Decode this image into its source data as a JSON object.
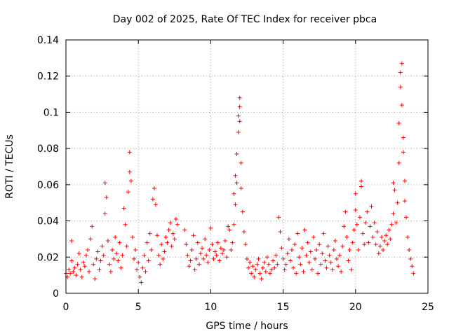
{
  "chart_data": {
    "type": "scatter",
    "title": "Day 002 of 2025, Rate Of TEC Index for receiver pbca",
    "xlabel": "GPS time / hours",
    "ylabel": "ROTI / TECUs",
    "xlim": [
      0,
      25
    ],
    "ylim": [
      0,
      0.14
    ],
    "xticks": [
      0,
      5,
      10,
      15,
      20,
      25
    ],
    "yticks": [
      0,
      0.02,
      0.04,
      0.06,
      0.08,
      0.1,
      0.12,
      0.14
    ],
    "grid": true,
    "marker": "+",
    "color": "#ff0000",
    "series": [
      {
        "name": "ROTI",
        "points": [
          [
            0.0,
            0.011
          ],
          [
            0.1,
            0.009
          ],
          [
            0.2,
            0.013
          ],
          [
            0.3,
            0.011
          ],
          [
            0.4,
            0.018
          ],
          [
            0.4,
            0.029
          ],
          [
            0.5,
            0.012
          ],
          [
            0.6,
            0.014
          ],
          [
            0.7,
            0.01
          ],
          [
            0.8,
            0.016
          ],
          [
            0.9,
            0.022
          ],
          [
            1.0,
            0.013
          ],
          [
            1.1,
            0.009
          ],
          [
            1.2,
            0.017
          ],
          [
            1.3,
            0.015
          ],
          [
            1.4,
            0.021
          ],
          [
            1.5,
            0.024
          ],
          [
            1.6,
            0.012
          ],
          [
            1.7,
            0.03
          ],
          [
            1.8,
            0.037
          ],
          [
            1.9,
            0.016
          ],
          [
            2.0,
            0.008
          ],
          [
            2.1,
            0.019
          ],
          [
            2.2,
            0.023
          ],
          [
            2.3,
            0.013
          ],
          [
            2.4,
            0.018
          ],
          [
            2.5,
            0.026
          ],
          [
            2.6,
            0.021
          ],
          [
            2.7,
            0.044
          ],
          [
            2.7,
            0.061
          ],
          [
            2.8,
            0.053
          ],
          [
            2.9,
            0.029
          ],
          [
            3.0,
            0.016
          ],
          [
            3.1,
            0.012
          ],
          [
            3.2,
            0.024
          ],
          [
            3.3,
            0.019
          ],
          [
            3.4,
            0.031
          ],
          [
            3.5,
            0.022
          ],
          [
            3.6,
            0.018
          ],
          [
            3.7,
            0.028
          ],
          [
            3.8,
            0.014
          ],
          [
            3.9,
            0.021
          ],
          [
            4.0,
            0.047
          ],
          [
            4.1,
            0.038
          ],
          [
            4.2,
            0.026
          ],
          [
            4.3,
            0.056
          ],
          [
            4.4,
            0.067
          ],
          [
            4.4,
            0.078
          ],
          [
            4.5,
            0.062
          ],
          [
            4.6,
            0.031
          ],
          [
            4.7,
            0.019
          ],
          [
            4.8,
            0.024
          ],
          [
            4.9,
            0.013
          ],
          [
            5.0,
            0.017
          ],
          [
            5.1,
            0.009
          ],
          [
            5.2,
            0.006
          ],
          [
            5.3,
            0.014
          ],
          [
            5.4,
            0.021
          ],
          [
            5.5,
            0.012
          ],
          [
            5.6,
            0.028
          ],
          [
            5.7,
            0.018
          ],
          [
            5.8,
            0.033
          ],
          [
            5.9,
            0.024
          ],
          [
            6.0,
            0.052
          ],
          [
            6.1,
            0.058
          ],
          [
            6.2,
            0.049
          ],
          [
            6.3,
            0.032
          ],
          [
            6.4,
            0.021
          ],
          [
            6.5,
            0.016
          ],
          [
            6.6,
            0.027
          ],
          [
            6.7,
            0.019
          ],
          [
            6.8,
            0.023
          ],
          [
            6.9,
            0.031
          ],
          [
            7.0,
            0.028
          ],
          [
            7.1,
            0.035
          ],
          [
            7.2,
            0.039
          ],
          [
            7.3,
            0.026
          ],
          [
            7.4,
            0.033
          ],
          [
            7.5,
            0.03
          ],
          [
            7.6,
            0.041
          ],
          [
            7.7,
            0.038
          ],
          [
            8.2,
            0.035
          ],
          [
            8.3,
            0.027
          ],
          [
            8.4,
            0.021
          ],
          [
            8.5,
            0.015
          ],
          [
            8.6,
            0.018
          ],
          [
            8.7,
            0.024
          ],
          [
            8.8,
            0.032
          ],
          [
            8.9,
            0.013
          ],
          [
            9.0,
            0.019
          ],
          [
            9.1,
            0.028
          ],
          [
            9.2,
            0.016
          ],
          [
            9.3,
            0.022
          ],
          [
            9.4,
            0.025
          ],
          [
            9.5,
            0.019
          ],
          [
            9.6,
            0.03
          ],
          [
            9.7,
            0.021
          ],
          [
            9.8,
            0.017
          ],
          [
            9.9,
            0.024
          ],
          [
            10.0,
            0.036
          ],
          [
            10.1,
            0.027
          ],
          [
            10.2,
            0.019
          ],
          [
            10.3,
            0.023
          ],
          [
            10.4,
            0.021
          ],
          [
            10.5,
            0.028
          ],
          [
            10.6,
            0.018
          ],
          [
            10.7,
            0.025
          ],
          [
            10.8,
            0.022
          ],
          [
            10.9,
            0.024
          ],
          [
            11.0,
            0.029
          ],
          [
            11.1,
            0.02
          ],
          [
            11.2,
            0.037
          ],
          [
            11.3,
            0.035
          ],
          [
            11.4,
            0.024
          ],
          [
            11.5,
            0.028
          ],
          [
            11.6,
            0.038
          ],
          [
            11.6,
            0.055
          ],
          [
            11.7,
            0.065
          ],
          [
            11.7,
            0.049
          ],
          [
            11.8,
            0.061
          ],
          [
            11.8,
            0.077
          ],
          [
            11.9,
            0.089
          ],
          [
            11.9,
            0.098
          ],
          [
            12.0,
            0.095
          ],
          [
            12.0,
            0.108
          ],
          [
            12.0,
            0.103
          ],
          [
            12.1,
            0.072
          ],
          [
            12.1,
            0.058
          ],
          [
            12.2,
            0.045
          ],
          [
            12.3,
            0.034
          ],
          [
            12.4,
            0.027
          ],
          [
            12.5,
            0.019
          ],
          [
            12.6,
            0.014
          ],
          [
            12.7,
            0.017
          ],
          [
            12.8,
            0.011
          ],
          [
            12.9,
            0.015
          ],
          [
            13.0,
            0.009
          ],
          [
            13.1,
            0.013
          ],
          [
            13.2,
            0.016
          ],
          [
            13.3,
            0.019
          ],
          [
            13.4,
            0.011
          ],
          [
            13.5,
            0.008
          ],
          [
            13.6,
            0.014
          ],
          [
            13.7,
            0.017
          ],
          [
            13.8,
            0.012
          ],
          [
            13.9,
            0.02
          ],
          [
            14.0,
            0.016
          ],
          [
            14.1,
            0.011
          ],
          [
            14.2,
            0.013
          ],
          [
            14.3,
            0.018
          ],
          [
            14.4,
            0.014
          ],
          [
            14.5,
            0.021
          ],
          [
            14.6,
            0.016
          ],
          [
            14.7,
            0.042
          ],
          [
            14.8,
            0.034
          ],
          [
            14.9,
            0.025
          ],
          [
            15.0,
            0.019
          ],
          [
            15.1,
            0.013
          ],
          [
            15.2,
            0.016
          ],
          [
            15.3,
            0.022
          ],
          [
            15.4,
            0.03
          ],
          [
            15.5,
            0.018
          ],
          [
            15.6,
            0.024
          ],
          [
            15.7,
            0.014
          ],
          [
            15.8,
            0.027
          ],
          [
            15.9,
            0.011
          ],
          [
            16.0,
            0.033
          ],
          [
            16.1,
            0.02
          ],
          [
            16.2,
            0.016
          ],
          [
            16.3,
            0.025
          ],
          [
            16.4,
            0.012
          ],
          [
            16.5,
            0.035
          ],
          [
            16.6,
            0.021
          ],
          [
            16.7,
            0.028
          ],
          [
            16.8,
            0.017
          ],
          [
            16.9,
            0.023
          ],
          [
            17.0,
            0.013
          ],
          [
            17.1,
            0.031
          ],
          [
            17.2,
            0.019
          ],
          [
            17.3,
            0.024
          ],
          [
            17.4,
            0.011
          ],
          [
            17.5,
            0.027
          ],
          [
            17.6,
            0.016
          ],
          [
            17.7,
            0.022
          ],
          [
            17.8,
            0.033
          ],
          [
            17.9,
            0.018
          ],
          [
            18.0,
            0.014
          ],
          [
            18.1,
            0.026
          ],
          [
            18.2,
            0.021
          ],
          [
            18.3,
            0.017
          ],
          [
            18.4,
            0.013
          ],
          [
            18.5,
            0.024
          ],
          [
            18.6,
            0.029
          ],
          [
            18.7,
            0.019
          ],
          [
            18.8,
            0.015
          ],
          [
            18.9,
            0.021
          ],
          [
            19.0,
            0.012
          ],
          [
            19.1,
            0.026
          ],
          [
            19.2,
            0.037
          ],
          [
            19.3,
            0.045
          ],
          [
            19.4,
            0.031
          ],
          [
            19.5,
            0.018
          ],
          [
            19.6,
            0.024
          ],
          [
            19.7,
            0.013
          ],
          [
            19.8,
            0.028
          ],
          [
            19.9,
            0.035
          ],
          [
            20.0,
            0.046
          ],
          [
            20.0,
            0.055
          ],
          [
            20.1,
            0.038
          ],
          [
            20.2,
            0.024
          ],
          [
            20.3,
            0.042
          ],
          [
            20.4,
            0.059
          ],
          [
            20.4,
            0.062
          ],
          [
            20.5,
            0.033
          ],
          [
            20.6,
            0.027
          ],
          [
            20.7,
            0.039
          ],
          [
            20.8,
            0.045
          ],
          [
            20.9,
            0.028
          ],
          [
            21.0,
            0.037
          ],
          [
            21.1,
            0.048
          ],
          [
            21.2,
            0.031
          ],
          [
            21.3,
            0.039
          ],
          [
            21.4,
            0.027
          ],
          [
            21.5,
            0.034
          ],
          [
            21.6,
            0.022
          ],
          [
            21.7,
            0.026
          ],
          [
            21.8,
            0.031
          ],
          [
            21.9,
            0.024
          ],
          [
            22.0,
            0.029
          ],
          [
            22.1,
            0.032
          ],
          [
            22.2,
            0.027
          ],
          [
            22.3,
            0.035
          ],
          [
            22.4,
            0.03
          ],
          [
            22.5,
            0.038
          ],
          [
            22.6,
            0.044
          ],
          [
            22.6,
            0.061
          ],
          [
            22.7,
            0.057
          ],
          [
            22.8,
            0.039
          ],
          [
            22.9,
            0.05
          ],
          [
            23.0,
            0.072
          ],
          [
            23.0,
            0.094
          ],
          [
            23.1,
            0.114
          ],
          [
            23.1,
            0.122
          ],
          [
            23.2,
            0.127
          ],
          [
            23.2,
            0.104
          ],
          [
            23.3,
            0.086
          ],
          [
            23.3,
            0.078
          ],
          [
            23.4,
            0.062
          ],
          [
            23.4,
            0.051
          ],
          [
            23.5,
            0.042
          ],
          [
            23.6,
            0.031
          ],
          [
            23.7,
            0.024
          ],
          [
            23.8,
            0.019
          ],
          [
            23.9,
            0.015
          ],
          [
            24.0,
            0.011
          ]
        ]
      }
    ]
  }
}
